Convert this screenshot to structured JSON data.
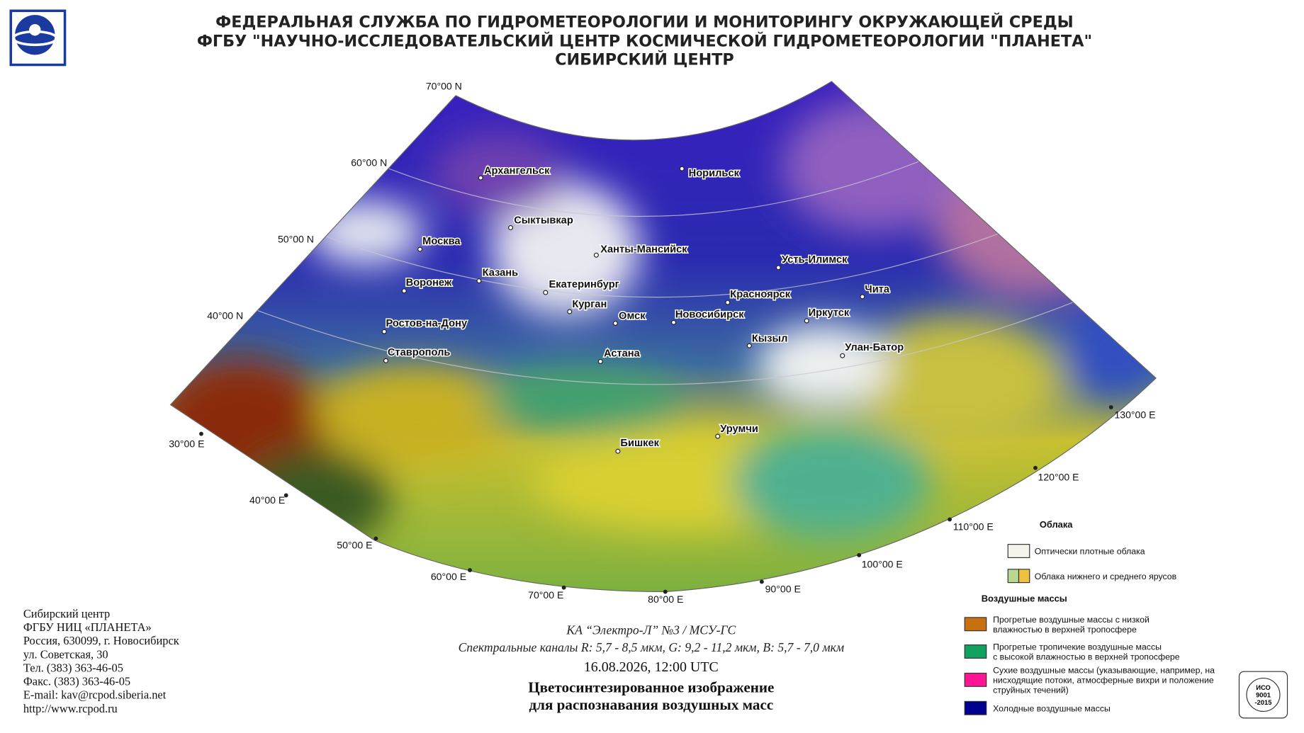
{
  "header": {
    "lines": [
      "ФЕДЕРАЛЬНАЯ СЛУЖБА ПО ГИДРОМЕТЕОРОЛОГИИ И МОНИТОРИНГУ ОКРУЖАЮЩЕЙ СРЕДЫ",
      "ФГБУ \"НАУЧНО-ИССЛЕДОВАТЕЛЬСКИЙ ЦЕНТР КОСМИЧЕСКОЙ ГИДРОМЕТЕОРОЛОГИИ \"ПЛАНЕТА\"",
      "СИБИРСКИЙ ЦЕНТР"
    ]
  },
  "map": {
    "parallels": [
      "70°00 N",
      "60°00 N",
      "50°00 N",
      "40°00 N"
    ],
    "meridians": [
      "30°00 E",
      "40°00 E",
      "50°00 E",
      "60°00 E",
      "70°00 E",
      "80°00 E",
      "90°00 E",
      "100°00 E",
      "110°00 E",
      "120°00 E",
      "130°00 E"
    ],
    "cities": [
      "Архангельск",
      "Норильск",
      "Сыктывкар",
      "Москва",
      "Ханты-Мансийск",
      "Усть-Илимск",
      "Казань",
      "Воронеж",
      "Екатеринбург",
      "Чита",
      "Красноярск",
      "Курган",
      "Иркутск",
      "Омск",
      "Новосибирск",
      "Ростов-на-Дону",
      "Кызыл",
      "Улан-Батор",
      "Астана",
      "Ставрополь",
      "Урумчи",
      "Бишкек"
    ]
  },
  "legend": {
    "clouds_title": "Облака",
    "clouds": [
      [
        "Оптически плотные облака"
      ],
      [
        "Облака нижнего и среднего ярусов"
      ]
    ],
    "air_title": "Воздушные массы",
    "air": [
      [
        "Прогретые воздушные массы с низкой",
        "влажностью в верхней тропосфере"
      ],
      [
        "Прогретые тропичекие воздушные массы",
        "с высокой влажностью в верхней тропосфере"
      ],
      [
        "Сухие воздушные массы (указывающие, например, на",
        "нисходящие потоки, атмосферные вихри и положение",
        "струйных течений)"
      ],
      [
        "Холодные воздушные массы"
      ]
    ]
  },
  "caption": {
    "satellite": "КА “Электро-Л” №3 / МСУ-ГС",
    "channels": "Спектральные каналы R: 5,7 - 8,5 мкм, G: 9,2 - 11,2 мкм, B: 5,7 - 7,0 мкм",
    "datetime": "16.08.2026, 12:00 UTC",
    "title": [
      "Цветосинтезированное изображение",
      "для распознавания воздушных масс"
    ]
  },
  "contacts": [
    "Сибирский центр",
    "ФГБУ НИЦ «ПЛАНЕТА»",
    "Россия, 630099, г. Новосибирск",
    "ул. Советская, 30",
    "Тел. (383) 363-46-05",
    "Факс. (383) 363-46-05",
    "E-mail: kav@rcpod.siberia.net",
    "http://www.rcpod.ru"
  ],
  "badge": [
    "ИСО",
    "9001",
    "-2015"
  ]
}
